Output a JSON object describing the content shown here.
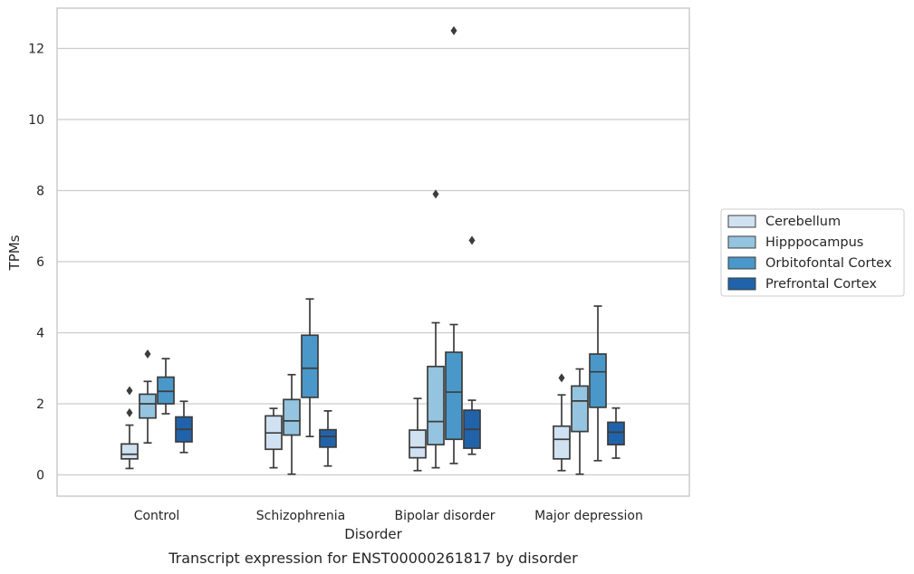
{
  "chart_data": {
    "type": "box",
    "caption": "Transcript expression for ENST00000261817 by disorder",
    "xlabel": "Disorder",
    "ylabel": "TPMs",
    "ylim": [
      -0.6,
      13.1
    ],
    "yticks": [
      0,
      2,
      4,
      6,
      8,
      10,
      12
    ],
    "grid": "horizontal",
    "legend_position": "right",
    "categories": [
      "Control",
      "Schizophrenia",
      "Bipolar disorder",
      "Major depression"
    ],
    "series": [
      {
        "name": "Cerebellum",
        "color": "#d0e1f2",
        "boxes": [
          {
            "whislo": 0.18,
            "q1": 0.45,
            "median": 0.58,
            "q3": 0.87,
            "whishi": 1.4,
            "fliers": [
              1.75,
              2.37
            ]
          },
          {
            "whislo": 0.2,
            "q1": 0.72,
            "median": 1.18,
            "q3": 1.66,
            "whishi": 1.87,
            "fliers": []
          },
          {
            "whislo": 0.12,
            "q1": 0.48,
            "median": 0.77,
            "q3": 1.26,
            "whishi": 2.15,
            "fliers": []
          },
          {
            "whislo": 0.12,
            "q1": 0.45,
            "median": 1.0,
            "q3": 1.37,
            "whishi": 2.25,
            "fliers": [
              2.73
            ]
          }
        ]
      },
      {
        "name": "Hipppocampus",
        "color": "#94c4df",
        "boxes": [
          {
            "whislo": 0.9,
            "q1": 1.6,
            "median": 2.0,
            "q3": 2.27,
            "whishi": 2.63,
            "fliers": [
              3.4
            ]
          },
          {
            "whislo": 0.02,
            "q1": 1.12,
            "median": 1.52,
            "q3": 2.12,
            "whishi": 2.82,
            "fliers": []
          },
          {
            "whislo": 0.2,
            "q1": 0.85,
            "median": 1.5,
            "q3": 3.05,
            "whishi": 4.28,
            "fliers": [
              7.9
            ]
          },
          {
            "whislo": 0.02,
            "q1": 1.22,
            "median": 2.08,
            "q3": 2.5,
            "whishi": 2.98,
            "fliers": []
          }
        ]
      },
      {
        "name": "Orbitofontal Cortex",
        "color": "#4a98c9",
        "boxes": [
          {
            "whislo": 1.72,
            "q1": 2.0,
            "median": 2.35,
            "q3": 2.75,
            "whishi": 3.27,
            "fliers": []
          },
          {
            "whislo": 1.08,
            "q1": 2.18,
            "median": 3.0,
            "q3": 3.93,
            "whishi": 4.95,
            "fliers": []
          },
          {
            "whislo": 0.32,
            "q1": 1.0,
            "median": 2.33,
            "q3": 3.45,
            "whishi": 4.23,
            "fliers": [
              12.5
            ]
          },
          {
            "whislo": 0.4,
            "q1": 1.9,
            "median": 2.9,
            "q3": 3.4,
            "whishi": 4.75,
            "fliers": []
          }
        ]
      },
      {
        "name": "Prefrontal Cortex",
        "color": "#2163aa",
        "boxes": [
          {
            "whislo": 0.63,
            "q1": 0.93,
            "median": 1.28,
            "q3": 1.63,
            "whishi": 2.07,
            "fliers": []
          },
          {
            "whislo": 0.25,
            "q1": 0.78,
            "median": 1.08,
            "q3": 1.27,
            "whishi": 1.8,
            "fliers": []
          },
          {
            "whislo": 0.58,
            "q1": 0.75,
            "median": 1.28,
            "q3": 1.82,
            "whishi": 2.1,
            "fliers": [
              6.6
            ]
          },
          {
            "whislo": 0.47,
            "q1": 0.85,
            "median": 1.2,
            "q3": 1.48,
            "whishi": 1.88,
            "fliers": []
          }
        ]
      }
    ]
  }
}
